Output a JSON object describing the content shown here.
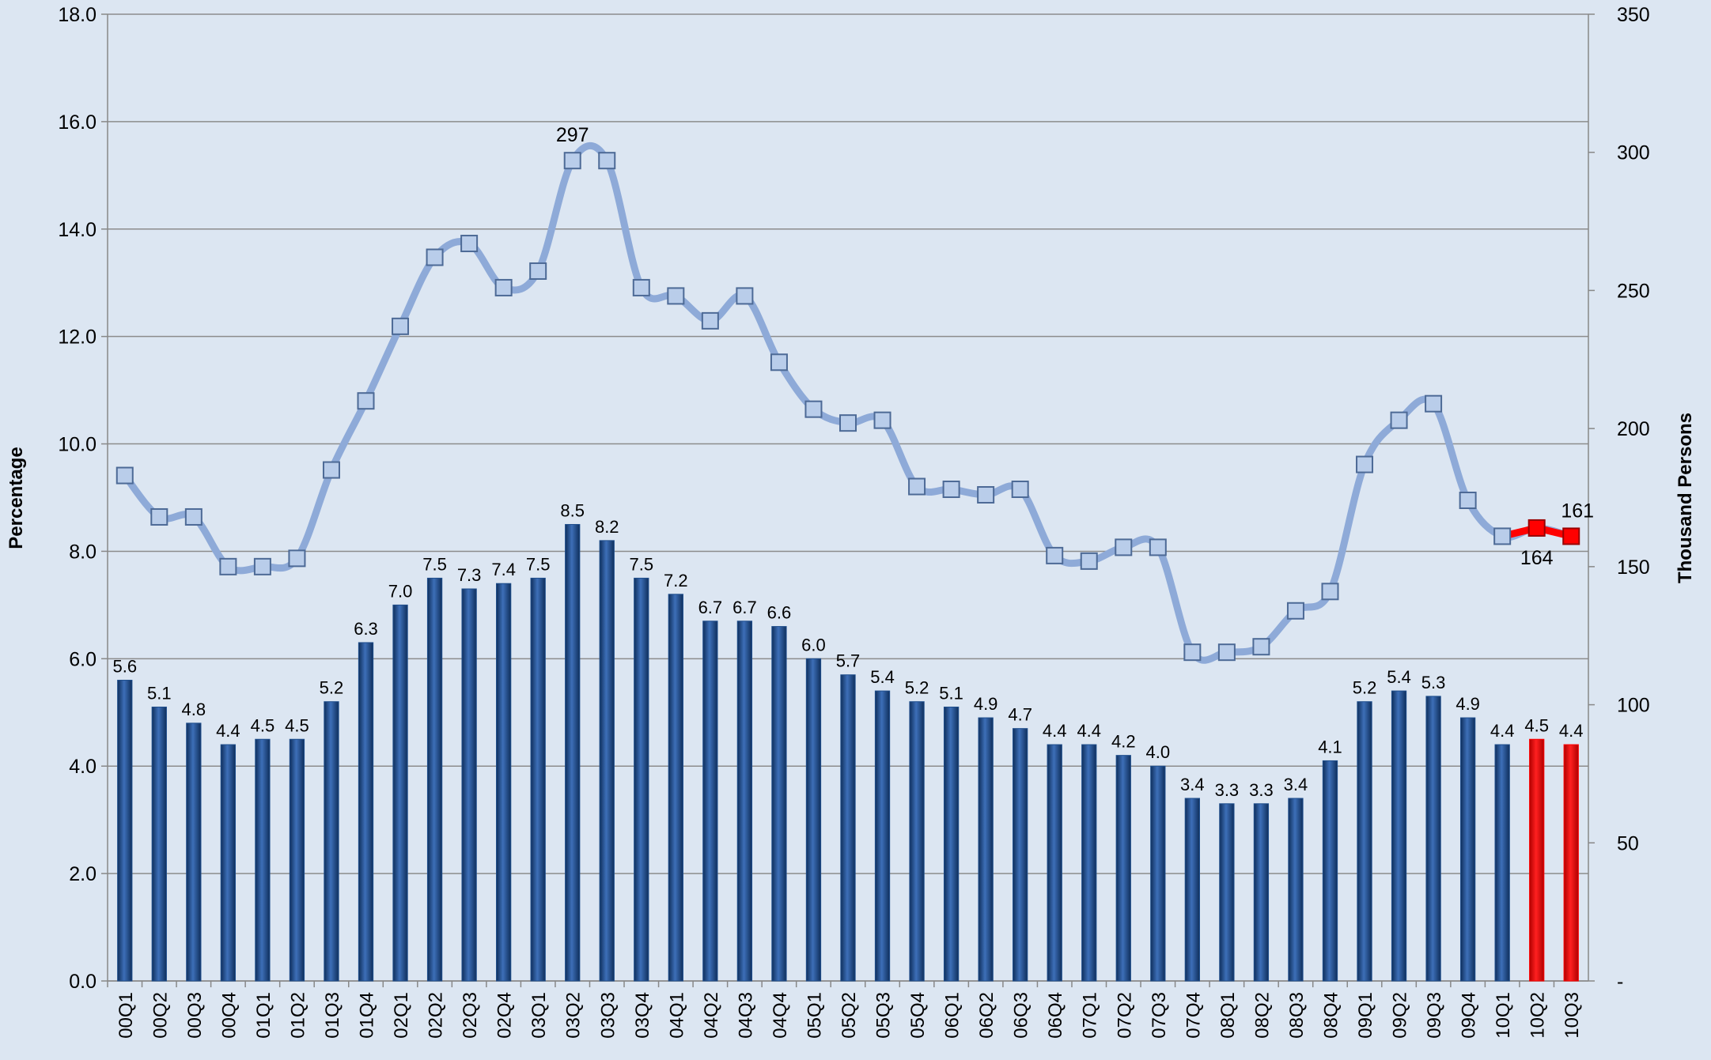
{
  "chart_data": {
    "type": "bar-line",
    "categories": [
      "00Q1",
      "00Q2",
      "00Q3",
      "00Q4",
      "01Q1",
      "01Q2",
      "01Q3",
      "01Q4",
      "02Q1",
      "02Q2",
      "02Q3",
      "02Q4",
      "03Q1",
      "03Q2",
      "03Q3",
      "03Q4",
      "04Q1",
      "04Q2",
      "04Q3",
      "04Q4",
      "05Q1",
      "05Q2",
      "05Q3",
      "05Q4",
      "06Q1",
      "06Q2",
      "06Q3",
      "06Q4",
      "07Q1",
      "07Q2",
      "07Q3",
      "07Q4",
      "08Q1",
      "08Q2",
      "08Q3",
      "08Q4",
      "09Q1",
      "09Q2",
      "09Q3",
      "09Q4",
      "10Q1",
      "10Q2",
      "10Q3"
    ],
    "y_label": "Percentage",
    "y2_label": "Thousand Persons",
    "ylim": [
      0,
      18
    ],
    "yticks": [
      {
        "value": 0,
        "label": "0.0"
      },
      {
        "value": 2,
        "label": "2.0"
      },
      {
        "value": 4,
        "label": "4.0"
      },
      {
        "value": 6,
        "label": "6.0"
      },
      {
        "value": 8,
        "label": "8.0"
      },
      {
        "value": 10,
        "label": "10.0"
      },
      {
        "value": 12,
        "label": "12.0"
      },
      {
        "value": 14,
        "label": "14.0"
      },
      {
        "value": 16,
        "label": "16.0"
      },
      {
        "value": 18,
        "label": "18.0"
      }
    ],
    "y2lim": [
      0,
      350
    ],
    "y2ticks": [
      {
        "value": 0,
        "label": "-"
      },
      50,
      100,
      150,
      200,
      250,
      300,
      350
    ],
    "grid": true,
    "series": [
      {
        "type": "bar",
        "color": "#1f4e8c",
        "colors": [
          "#1f4e8c",
          "#1f4e8c",
          "#1f4e8c",
          "#1f4e8c",
          "#1f4e8c",
          "#1f4e8c",
          "#1f4e8c",
          "#1f4e8c",
          "#1f4e8c",
          "#1f4e8c",
          "#1f4e8c",
          "#1f4e8c",
          "#1f4e8c",
          "#1f4e8c",
          "#1f4e8c",
          "#1f4e8c",
          "#1f4e8c",
          "#1f4e8c",
          "#1f4e8c",
          "#1f4e8c",
          "#1f4e8c",
          "#1f4e8c",
          "#1f4e8c",
          "#1f4e8c",
          "#1f4e8c",
          "#1f4e8c",
          "#1f4e8c",
          "#1f4e8c",
          "#1f4e8c",
          "#1f4e8c",
          "#1f4e8c",
          "#1f4e8c",
          "#1f4e8c",
          "#1f4e8c",
          "#1f4e8c",
          "#1f4e8c",
          "#1f4e8c",
          "#1f4e8c",
          "#1f4e8c",
          "#1f4e8c",
          "#1f4e8c",
          "#ff0000",
          "#ff0000"
        ],
        "values": [
          5.6,
          5.1,
          4.8,
          4.4,
          4.5,
          4.5,
          5.2,
          6.3,
          7.0,
          7.5,
          7.3,
          7.4,
          7.5,
          8.5,
          8.2,
          7.5,
          7.2,
          6.7,
          6.7,
          6.6,
          6.0,
          5.7,
          5.4,
          5.2,
          5.1,
          4.9,
          4.7,
          4.4,
          4.4,
          4.2,
          4.0,
          3.4,
          3.3,
          3.3,
          3.4,
          4.1,
          5.2,
          5.4,
          5.3,
          4.9,
          4.4,
          4.5,
          4.4
        ],
        "value_labels": [
          "5.6",
          "5.1",
          "4.8",
          "4.4",
          "4.5",
          "4.5",
          "5.2",
          "6.3",
          "7.0",
          "7.5",
          "7.3",
          "7.4",
          "7.5",
          "8.5",
          "8.2",
          "7.5",
          "7.2",
          "6.7",
          "6.7",
          "6.6",
          "6.0",
          "5.7",
          "5.4",
          "5.2",
          "5.1",
          "4.9",
          "4.7",
          "4.4",
          "4.4",
          "4.2",
          "4.0",
          "3.4",
          "3.3",
          "3.3",
          "3.4",
          "4.1",
          "5.2",
          "5.4",
          "5.3",
          "4.9",
          "4.4",
          "4.5",
          "4.4"
        ]
      },
      {
        "type": "line",
        "axis": "y2",
        "color": "#8eaad8",
        "colors": [
          "#8eaad8",
          "#8eaad8",
          "#8eaad8",
          "#8eaad8",
          "#8eaad8",
          "#8eaad8",
          "#8eaad8",
          "#8eaad8",
          "#8eaad8",
          "#8eaad8",
          "#8eaad8",
          "#8eaad8",
          "#8eaad8",
          "#8eaad8",
          "#8eaad8",
          "#8eaad8",
          "#8eaad8",
          "#8eaad8",
          "#8eaad8",
          "#8eaad8",
          "#8eaad8",
          "#8eaad8",
          "#8eaad8",
          "#8eaad8",
          "#8eaad8",
          "#8eaad8",
          "#8eaad8",
          "#8eaad8",
          "#8eaad8",
          "#8eaad8",
          "#8eaad8",
          "#8eaad8",
          "#8eaad8",
          "#8eaad8",
          "#8eaad8",
          "#8eaad8",
          "#8eaad8",
          "#8eaad8",
          "#8eaad8",
          "#8eaad8",
          "#8eaad8",
          "#ff0000",
          "#ff0000"
        ],
        "values": [
          183,
          168,
          168,
          150,
          150,
          153,
          185,
          210,
          237,
          262,
          267,
          251,
          257,
          297,
          297,
          251,
          248,
          239,
          248,
          224,
          207,
          202,
          203,
          179,
          178,
          176,
          178,
          154,
          152,
          157,
          157,
          119,
          119,
          121,
          134,
          141,
          187,
          203,
          209,
          174,
          161,
          164,
          161
        ],
        "value_labels": [
          null,
          null,
          null,
          null,
          null,
          null,
          null,
          null,
          null,
          null,
          null,
          null,
          null,
          "297",
          null,
          null,
          null,
          null,
          null,
          null,
          null,
          null,
          null,
          null,
          null,
          null,
          null,
          null,
          null,
          null,
          null,
          null,
          null,
          null,
          null,
          null,
          null,
          null,
          null,
          null,
          null,
          "164",
          "161"
        ]
      }
    ]
  }
}
